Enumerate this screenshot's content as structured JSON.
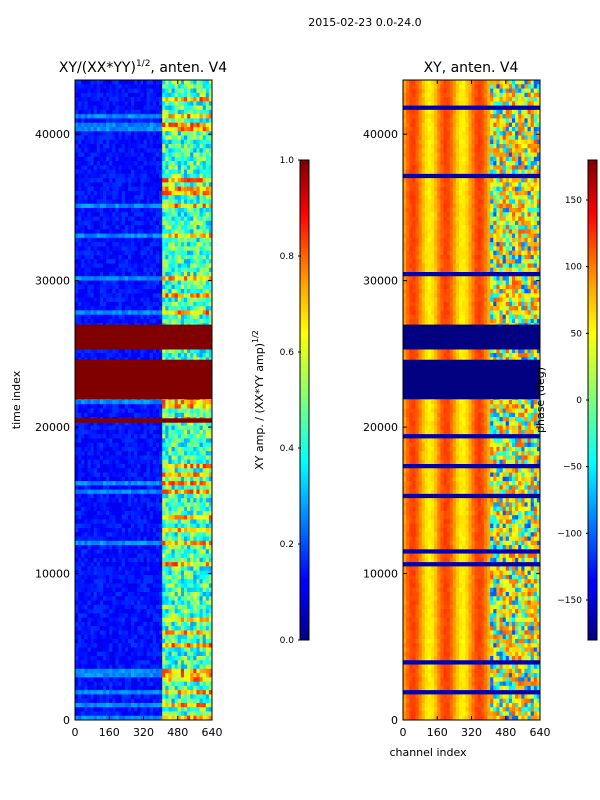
{
  "suptitle": "2015-02-23 0.0-24.0",
  "chart_data": [
    {
      "type": "heatmap",
      "title": "XY/(XX*YY)^1/2, anten. V4",
      "title_main": "XY/(XX*YY)",
      "title_exp": "1/2",
      "title_suffix": ", anten. V4",
      "xlabel": "",
      "ylabel": "time index",
      "xlim": [
        0,
        640
      ],
      "ylim": [
        0,
        43700
      ],
      "xticks": [
        "0",
        "160",
        "320",
        "480",
        "640"
      ],
      "yticks": [
        "0",
        "10000",
        "20000",
        "30000",
        "40000"
      ],
      "colormap": "jet",
      "bands": [
        {
          "name": "saturated",
          "from": 25300,
          "to": 27000,
          "value": 1.0
        },
        {
          "name": "saturated",
          "from": 21900,
          "to": 24600,
          "value": 1.0
        },
        {
          "name": "saturated",
          "from": 20300,
          "to": 20600,
          "value": 1.0
        }
      ],
      "colorbar": {
        "label_main": "XY amp. / (XX*YY amp)",
        "label_exp": "1/2",
        "range": [
          0.0,
          1.0
        ],
        "ticks": [
          "0.0",
          "0.2",
          "0.4",
          "0.6",
          "0.8",
          "1.0"
        ]
      }
    },
    {
      "type": "heatmap",
      "title": "XY, anten. V4",
      "xlabel": "channel index",
      "ylabel": "",
      "xlim": [
        0,
        640
      ],
      "ylim": [
        0,
        43700
      ],
      "xticks": [
        "0",
        "160",
        "320",
        "480",
        "640"
      ],
      "yticks": [
        "0",
        "10000",
        "20000",
        "30000",
        "40000"
      ],
      "colormap": "jet",
      "bands": [
        {
          "name": "flagged",
          "from": 25300,
          "to": 27000,
          "value": -180
        },
        {
          "name": "flagged",
          "from": 21900,
          "to": 24600,
          "value": -180
        }
      ],
      "colorbar": {
        "label": "phase (deg)",
        "range": [
          -180,
          180
        ],
        "ticks": [
          "−150",
          "−100",
          "−50",
          "0",
          "50",
          "100",
          "150"
        ]
      }
    }
  ]
}
